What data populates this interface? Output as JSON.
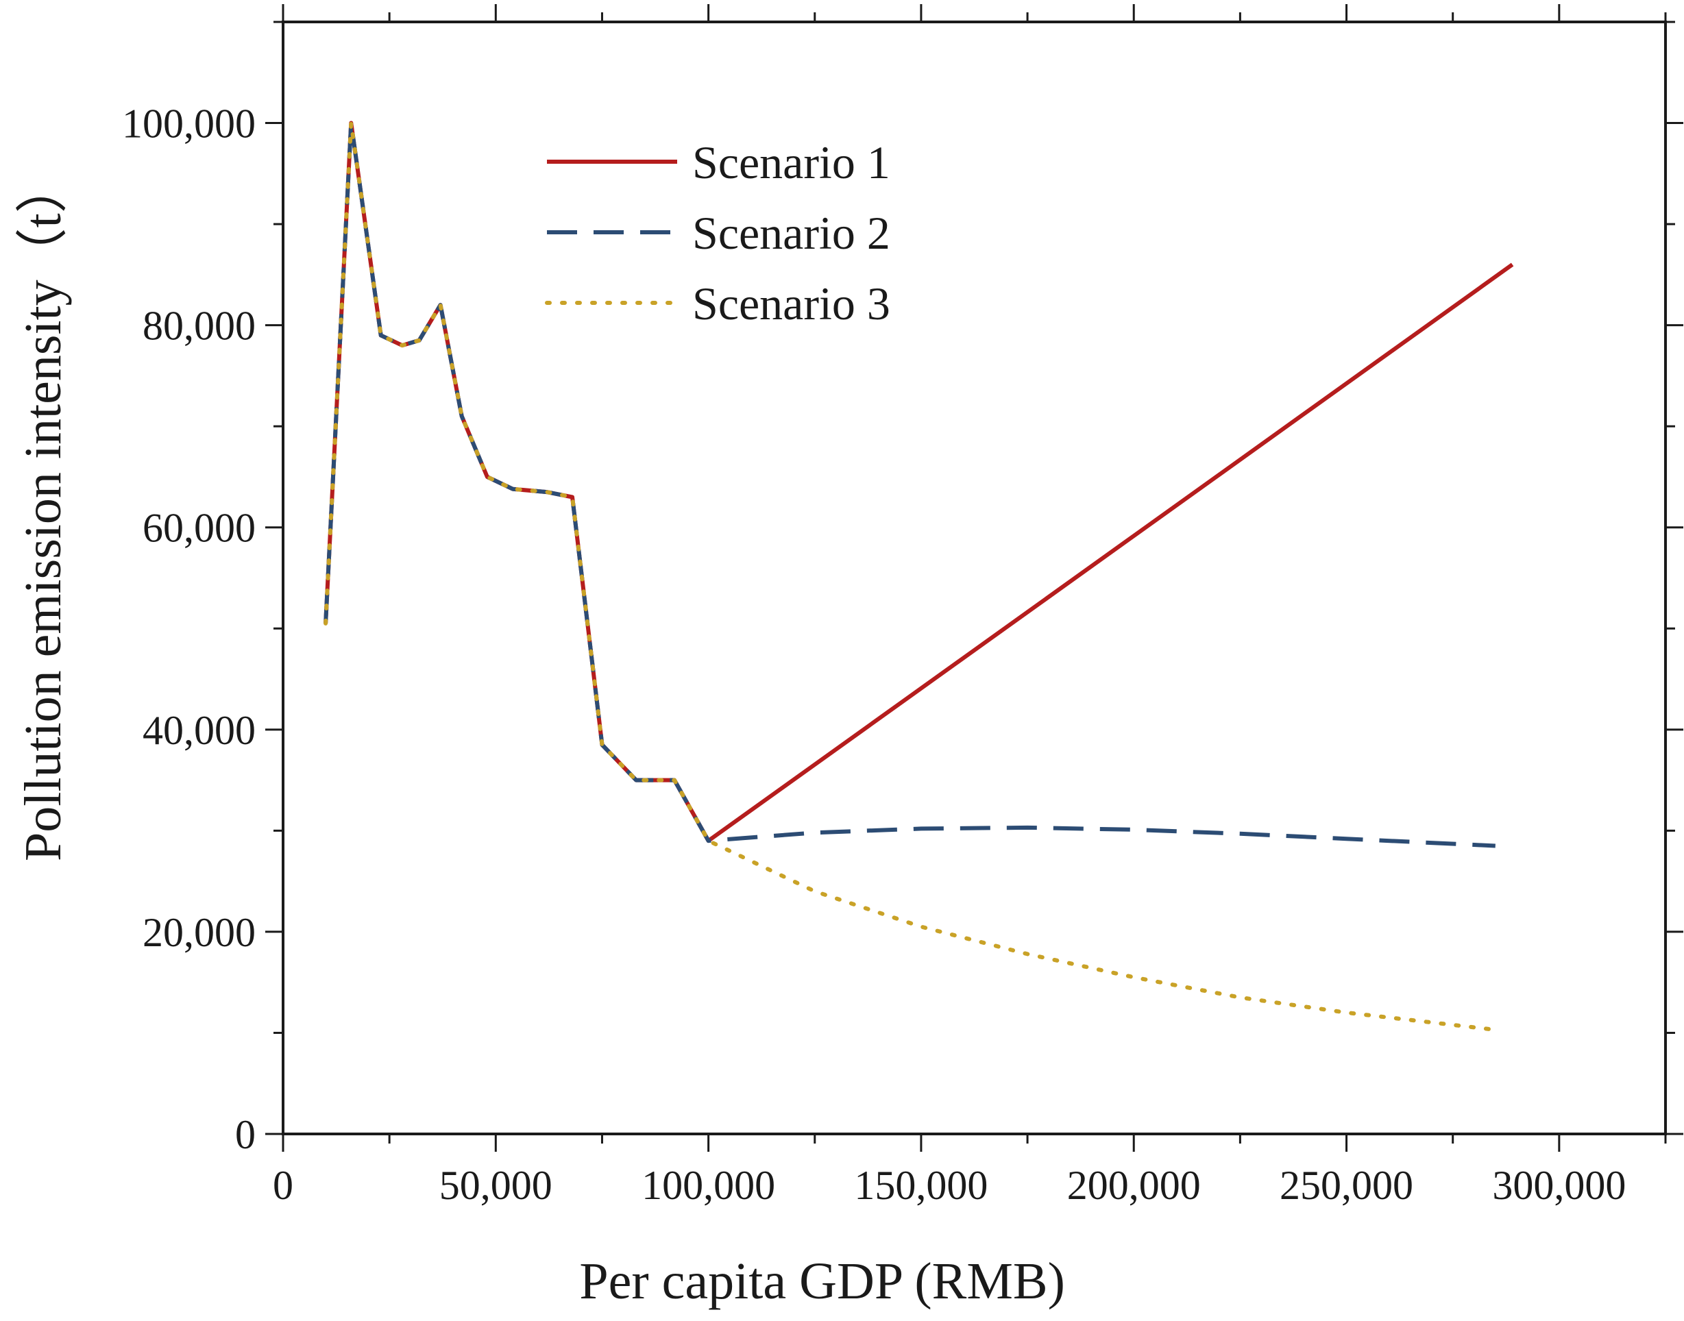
{
  "chart_data": {
    "type": "line",
    "title": "",
    "xlabel": "Per capita GDP (RMB)",
    "ylabel": "Pollution emission intensity（t）",
    "xlim": [
      0,
      325000
    ],
    "ylim": [
      0,
      110000
    ],
    "x_ticks": [
      0,
      50000,
      100000,
      150000,
      200000,
      250000,
      300000
    ],
    "x_tick_labels": [
      "0",
      "50,000",
      "100,000",
      "150,000",
      "200,000",
      "250,000",
      "300,000"
    ],
    "y_ticks": [
      0,
      20000,
      40000,
      60000,
      80000,
      100000
    ],
    "y_tick_labels": [
      "0",
      "20,000",
      "40,000",
      "60,000",
      "80,000",
      "100,000"
    ],
    "grid": false,
    "legend_position": "top-left",
    "common_path": {
      "x": [
        10000,
        16000,
        23000,
        28000,
        32000,
        37000,
        42000,
        48000,
        54000,
        62000,
        68000,
        75000,
        83000,
        92000,
        100000
      ],
      "y": [
        50500,
        100000,
        79000,
        78000,
        78500,
        82000,
        71000,
        65000,
        63800,
        63500,
        63000,
        38500,
        35000,
        35000,
        29000
      ]
    },
    "series": [
      {
        "name": "Scenario 1",
        "color": "#b51d1d",
        "style": "solid",
        "x": [
          100000,
          289000
        ],
        "y": [
          29000,
          86000
        ]
      },
      {
        "name": "Scenario 2",
        "color": "#2c4c74",
        "style": "dashed",
        "x": [
          100000,
          125000,
          150000,
          175000,
          200000,
          225000,
          250000,
          285000
        ],
        "y": [
          29000,
          29800,
          30200,
          30300,
          30100,
          29700,
          29200,
          28500
        ]
      },
      {
        "name": "Scenario 3",
        "color": "#c9a227",
        "style": "dotted",
        "x": [
          100000,
          125000,
          150000,
          175000,
          200000,
          225000,
          250000,
          285000
        ],
        "y": [
          29000,
          24000,
          20500,
          17800,
          15500,
          13500,
          12000,
          10300
        ]
      }
    ]
  }
}
